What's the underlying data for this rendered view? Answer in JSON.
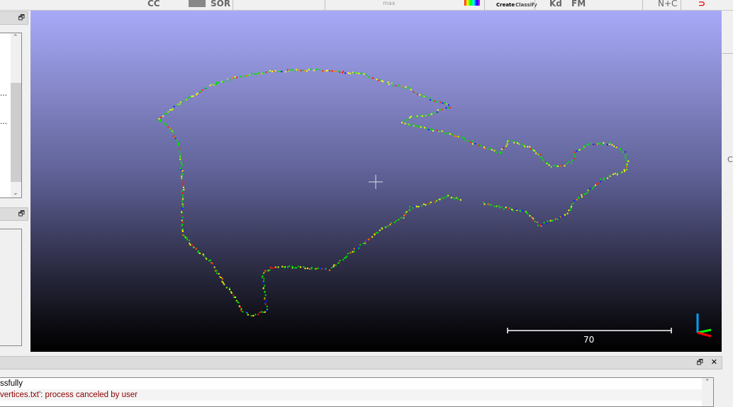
{
  "toolbar": {
    "items": [
      "CC",
      "SOR",
      "max",
      "Create",
      "Classify",
      "Kd",
      "FM",
      "N+C"
    ]
  },
  "viewport": {
    "scale_bar_label": "70",
    "point_colors": [
      "#00e000",
      "#ffff00",
      "#ff2000",
      "#0020ff",
      "#80ff00",
      "#ff8000",
      "#00ff80"
    ],
    "axis_colors": {
      "x": "#ff0000",
      "y": "#00ff00",
      "z": "#00a0ff"
    }
  },
  "left_panel": {
    "tree_item_ellipsis_1": "…",
    "tree_item_ellipsis_2": "…"
  },
  "right_panel": {
    "label": "C"
  },
  "console": {
    "lines": [
      {
        "text": "ssfully",
        "color": "#000000"
      },
      {
        "text": "vertices.txt': process canceled by user",
        "color": "#8b0000"
      }
    ],
    "close_label": "✕",
    "float_label": "🗗"
  }
}
